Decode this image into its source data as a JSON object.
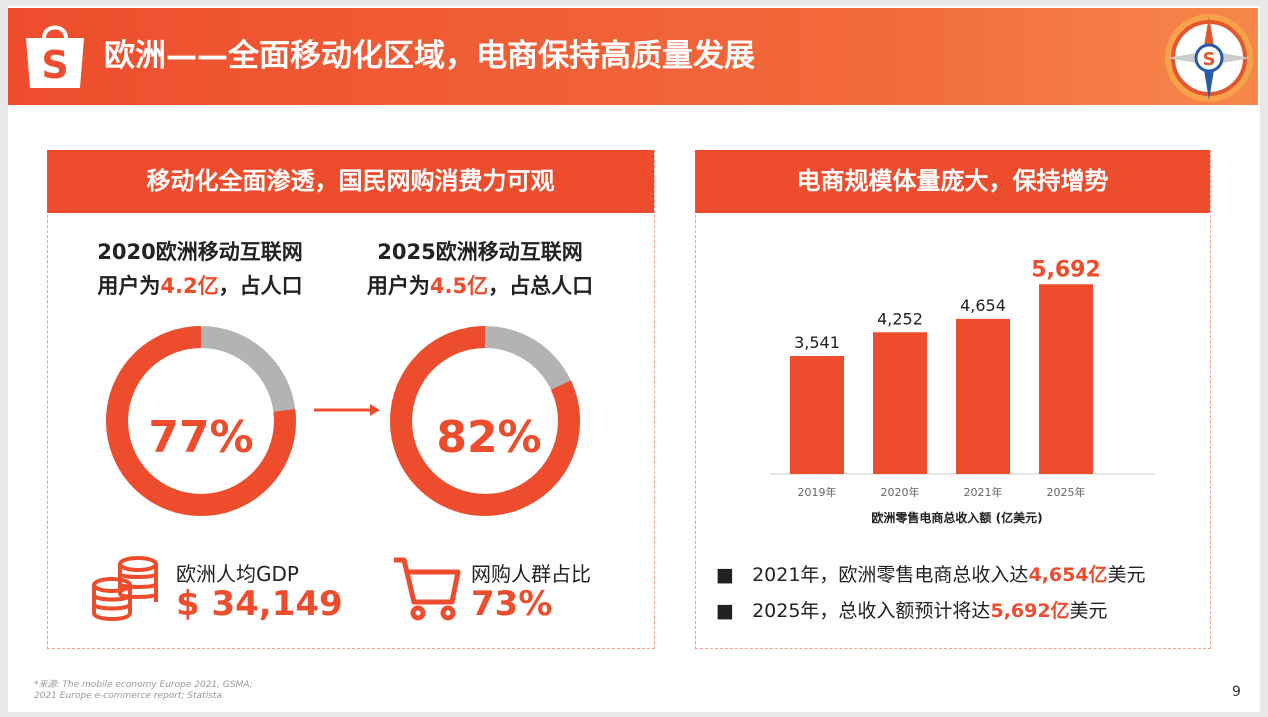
{
  "header": {
    "title": "欧洲——全面移动化区域，电商保持高质量发展",
    "logo_letter": "S",
    "compass_letter": "S"
  },
  "left_panel": {
    "title": "移动化全面渗透，国民网购消费力可观",
    "stat_2020": {
      "line1": "2020欧洲移动互联网",
      "line2_pre": "用户为",
      "line2_val": "4.2亿",
      "line2_post": "，占人口",
      "percent_label": "77%",
      "percent": 77
    },
    "stat_2025": {
      "line1": "2025欧洲移动互联网",
      "line2_pre": "用户为",
      "line2_val": "4.5亿",
      "line2_post": "，占总人口",
      "percent_label": "82%",
      "percent": 82
    },
    "gdp": {
      "label": "欧洲人均GDP",
      "value": "$ 34,149",
      "icon": "coins-icon"
    },
    "shoppers": {
      "label": "网购人群占比",
      "value": "73%",
      "icon": "cart-icon"
    }
  },
  "right_panel": {
    "title": "电商规模体量庞大，保持增势",
    "bullets": [
      {
        "pre": "2021年，欧洲零售电商总收入达",
        "val": "4,654亿",
        "post": "美元"
      },
      {
        "pre": "2025年，总收入额预计将达",
        "val": "5,692亿",
        "post": "美元"
      }
    ]
  },
  "chart_data": {
    "type": "bar",
    "categories": [
      "2019年",
      "2020年",
      "2021年",
      "2025年"
    ],
    "values": [
      3541,
      4252,
      4654,
      5692
    ],
    "value_labels": [
      "3,541",
      "4,252",
      "4,654",
      "5,692"
    ],
    "xlabel": "欧洲零售电商总收入额 (亿美元)",
    "ylim": [
      0,
      6000
    ],
    "colors": {
      "bar": "#ee4d2d",
      "highlight_label": "#ee4d2d"
    }
  },
  "footer": {
    "source_line1": "*来源: The mobile economy Europe 2021, GSMA;",
    "source_line2": "2021 Europe e-commerce report; Statista",
    "page_number": "9"
  },
  "colors": {
    "accent": "#ee4d2d",
    "donut_rest": "#b3b3b3"
  }
}
